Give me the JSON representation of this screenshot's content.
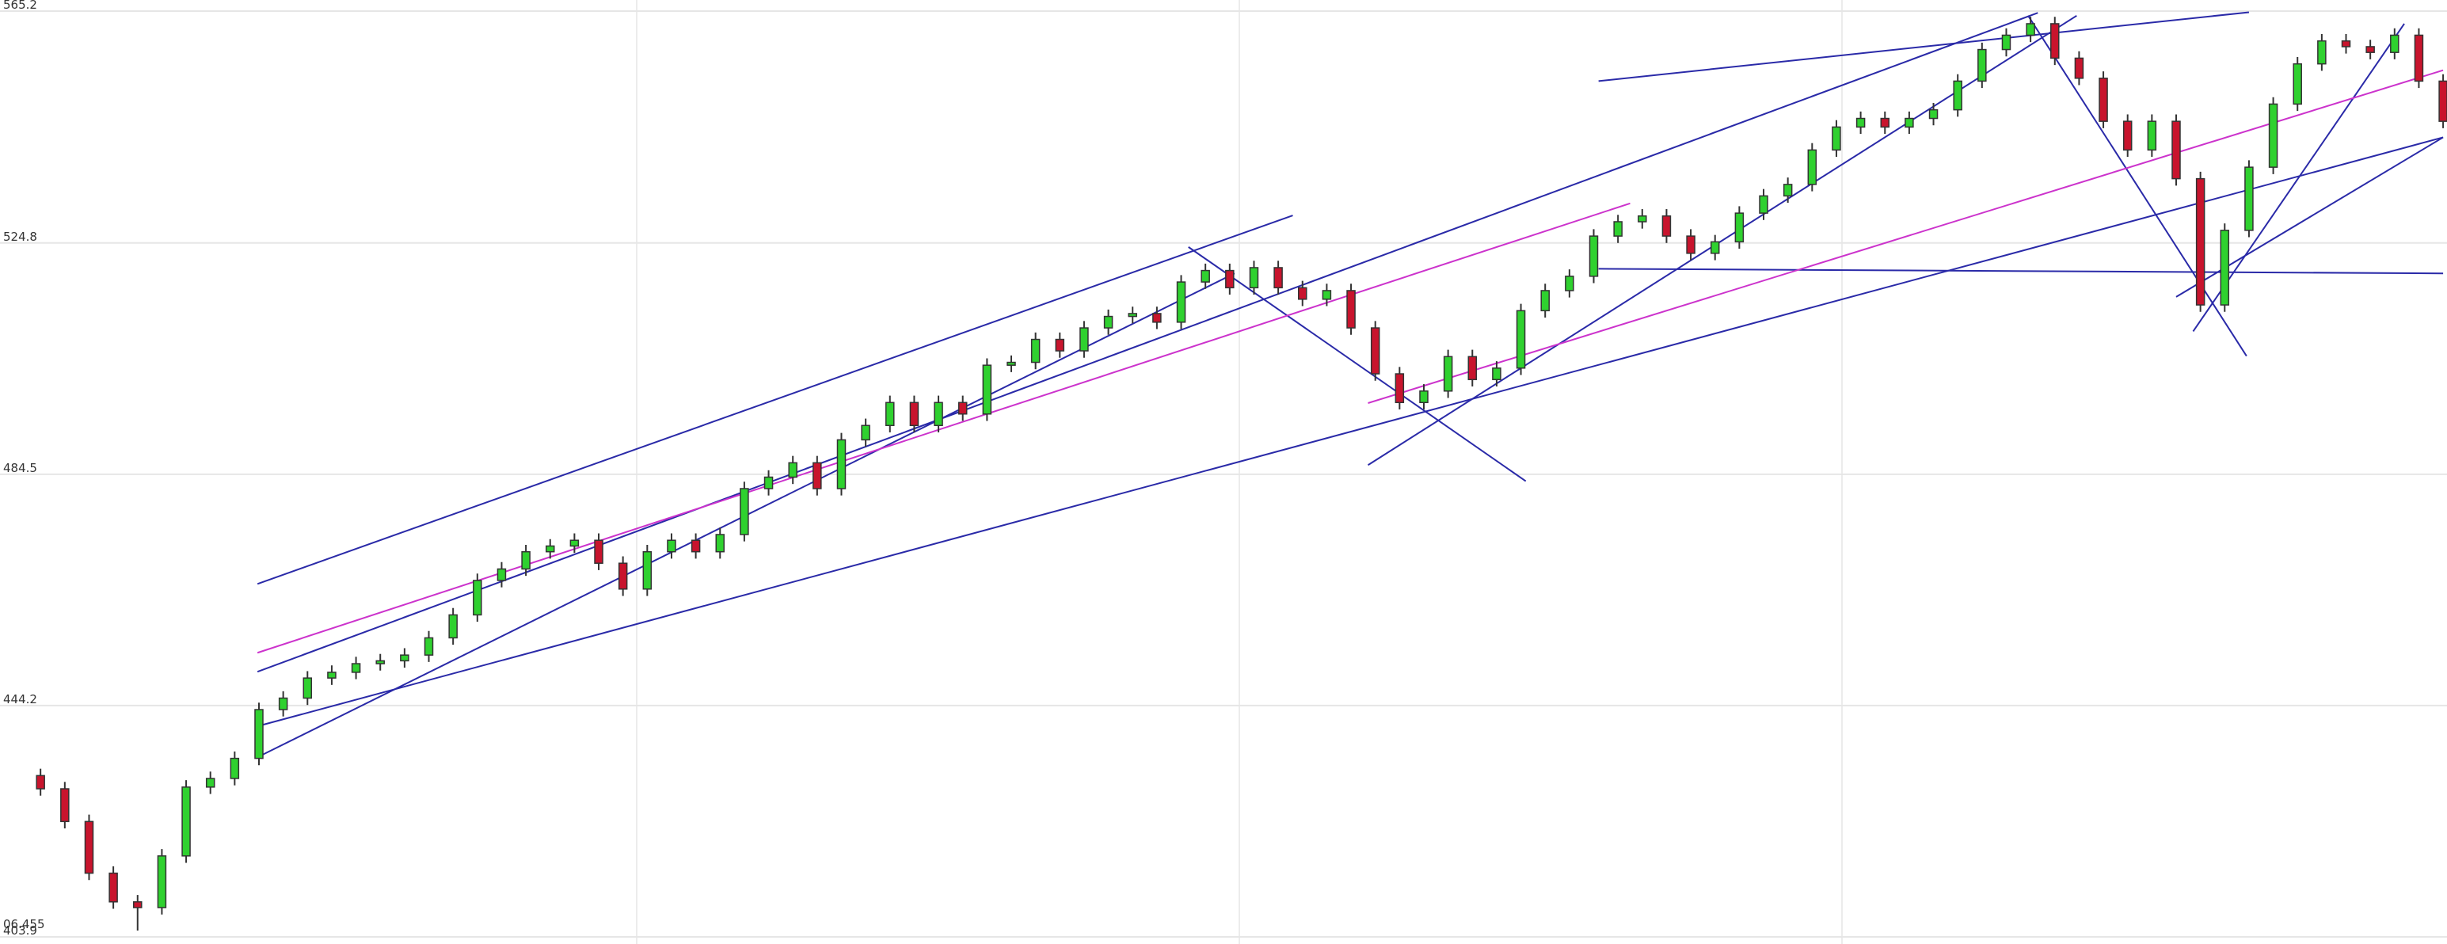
{
  "chart_data": {
    "type": "candlestick",
    "ylim": [
      403.9,
      565.2
    ],
    "yticks": [
      403.9,
      444.2,
      484.5,
      524.8,
      565.2
    ],
    "xlim": [
      -1.67,
      99.16
    ],
    "grid": true,
    "price_label": "06.455",
    "up_color": "#2fd12f",
    "down_color": "#c8142d",
    "open": [
      432,
      429.7,
      424,
      415,
      410,
      409,
      418,
      430,
      431.5,
      435,
      443.5,
      445.5,
      449,
      450,
      451.5,
      452,
      453,
      456,
      460,
      466,
      468,
      471,
      472,
      473,
      469,
      464.5,
      471,
      473,
      471,
      474,
      482,
      484,
      486.5,
      482,
      490.5,
      493,
      497,
      493,
      497,
      495,
      503.5,
      504,
      508,
      506,
      510,
      512,
      512.5,
      511,
      518,
      520,
      517,
      520.5,
      517,
      515,
      516.5,
      510,
      502,
      497,
      499,
      505,
      501,
      503,
      513,
      516.5,
      519,
      526,
      528.5,
      529.5,
      526,
      523,
      525,
      530,
      533,
      535,
      541,
      545,
      546.5,
      545,
      546.5,
      548,
      553,
      558.5,
      561,
      563,
      557,
      553.5,
      546,
      541,
      546,
      536,
      514,
      527,
      538,
      549,
      556,
      560,
      559,
      558,
      561,
      553
    ],
    "high": [
      433.2,
      430.9,
      425.2,
      416.2,
      411.2,
      419.2,
      431.2,
      432.7,
      436.2,
      444.7,
      446.7,
      450.2,
      451.2,
      452.7,
      453.2,
      454.2,
      457.2,
      461.2,
      467.2,
      469.2,
      472.2,
      473.2,
      474.2,
      474.2,
      470.2,
      472.2,
      474.2,
      474.2,
      475.2,
      483.2,
      485.2,
      487.7,
      487.7,
      491.7,
      494.2,
      498.2,
      498.2,
      498.2,
      498.2,
      504.7,
      505.2,
      509.2,
      509.2,
      511.2,
      513.2,
      513.7,
      513.7,
      519.2,
      521.2,
      521.2,
      521.7,
      521.7,
      518.2,
      517.7,
      517.7,
      511.2,
      503.2,
      500.2,
      506.2,
      506.2,
      504.2,
      514.2,
      517.7,
      520.2,
      527.2,
      529.7,
      530.7,
      530.7,
      527.2,
      526.2,
      531.2,
      534.2,
      536.2,
      542.2,
      546.2,
      547.7,
      547.7,
      547.7,
      549.2,
      554.2,
      559.7,
      562.2,
      564.2,
      564.2,
      558.2,
      554.7,
      547.2,
      547.2,
      547.2,
      537.2,
      528.2,
      539.2,
      550.2,
      557.2,
      561.2,
      561.2,
      560.2,
      562.2,
      562.2,
      554.2
    ],
    "low": [
      428.5,
      422.8,
      413.8,
      408.8,
      405,
      407.8,
      416.8,
      428.8,
      430.3,
      433.8,
      442.3,
      444.3,
      447.8,
      448.8,
      450.3,
      450.8,
      451.8,
      454.8,
      458.8,
      464.8,
      466.8,
      469.8,
      470.8,
      467.8,
      463.3,
      463.3,
      469.8,
      469.8,
      469.8,
      472.8,
      480.8,
      482.8,
      480.8,
      480.8,
      489.3,
      491.8,
      491.8,
      491.8,
      493.8,
      493.8,
      502.3,
      502.8,
      504.8,
      504.8,
      508.8,
      510.8,
      509.8,
      509.8,
      516.8,
      515.8,
      515.8,
      515.8,
      513.8,
      513.8,
      508.8,
      500.8,
      495.8,
      495.8,
      497.8,
      499.8,
      499.8,
      501.8,
      511.8,
      515.3,
      517.8,
      524.8,
      527.3,
      524.8,
      521.8,
      521.8,
      523.8,
      528.8,
      531.8,
      533.8,
      539.8,
      543.8,
      543.8,
      543.8,
      545.3,
      546.8,
      551.8,
      557.3,
      559.8,
      555.8,
      552.3,
      544.8,
      539.8,
      539.8,
      534.8,
      512.8,
      512.8,
      525.8,
      536.8,
      547.8,
      554.8,
      557.8,
      556.8,
      556.8,
      551.8,
      544.8
    ],
    "close": [
      429.7,
      424,
      415,
      410,
      409,
      418,
      430,
      431.5,
      435,
      443.5,
      445.5,
      449,
      450,
      451.5,
      452,
      453,
      456,
      460,
      466,
      468,
      471,
      472,
      473,
      469,
      464.5,
      471,
      473,
      471,
      474,
      482,
      484,
      486.5,
      482,
      490.5,
      493,
      497,
      493,
      497,
      495,
      503.5,
      504,
      508,
      506,
      510,
      512,
      512.5,
      511,
      518,
      520,
      517,
      520.5,
      517,
      515,
      516.5,
      510,
      502,
      497,
      499,
      505,
      501,
      503,
      513,
      516.5,
      519,
      526,
      528.5,
      529.5,
      526,
      523,
      525,
      530,
      533,
      535,
      541,
      545,
      546.5,
      545,
      546.5,
      548,
      553,
      558.5,
      561,
      563,
      557,
      553.5,
      546,
      541,
      546,
      536,
      514,
      527,
      538,
      549,
      556,
      560,
      559,
      558,
      561,
      553,
      546
    ],
    "trendlines": [
      {
        "color": "#2a2aa8",
        "x": [
          8.94,
          51.6
        ],
        "y": [
          465.4,
          529.6
        ]
      },
      {
        "color": "#2a2aa8",
        "x": [
          8.94,
          82.3
        ],
        "y": [
          450.1,
          564.9
        ]
      },
      {
        "color": "#2a2aa8",
        "x": [
          8.94,
          99
        ],
        "y": [
          440.6,
          543.2
        ]
      },
      {
        "color": "#2a2aa8",
        "x": [
          8.94,
          49.2
        ],
        "y": [
          435.2,
          519.5
        ]
      },
      {
        "color": "#2a2aa8",
        "x": [
          64.2,
          91
        ],
        "y": [
          553,
          565
        ]
      },
      {
        "color": "#2a2aa8",
        "x": [
          64.2,
          99
        ],
        "y": [
          520.3,
          519.5
        ]
      },
      {
        "color": "#2a2aa8",
        "x": [
          47.3,
          61.2
        ],
        "y": [
          524.1,
          483.3
        ]
      },
      {
        "color": "#2a2aa8",
        "x": [
          54.7,
          83.9
        ],
        "y": [
          486.1,
          564.4
        ]
      },
      {
        "color": "#2a2aa8",
        "x": [
          81.9,
          90.9
        ],
        "y": [
          564.4,
          505.1
        ]
      },
      {
        "color": "#2a2aa8",
        "x": [
          88.7,
          97.4
        ],
        "y": [
          509.4,
          563
        ]
      },
      {
        "color": "#2a2aa8",
        "x": [
          88,
          99
        ],
        "y": [
          515.4,
          543.2
        ]
      },
      {
        "color": "#cc33cc",
        "x": [
          8.94,
          65.5
        ],
        "y": [
          453.4,
          531.7
        ]
      },
      {
        "color": "#cc33cc",
        "x": [
          54.7,
          99
        ],
        "y": [
          496.9,
          554.9
        ]
      }
    ]
  }
}
